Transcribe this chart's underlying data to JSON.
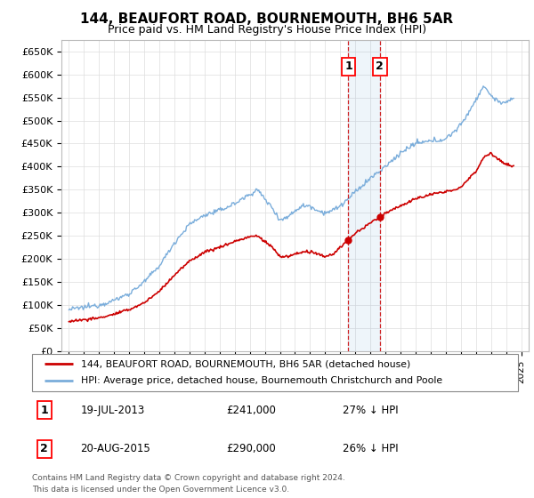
{
  "title": "144, BEAUFORT ROAD, BOURNEMOUTH, BH6 5AR",
  "subtitle": "Price paid vs. HM Land Registry's House Price Index (HPI)",
  "legend_line1": "144, BEAUFORT ROAD, BOURNEMOUTH, BH6 5AR (detached house)",
  "legend_line2": "HPI: Average price, detached house, Bournemouth Christchurch and Poole",
  "footer": "Contains HM Land Registry data © Crown copyright and database right 2024.\nThis data is licensed under the Open Government Licence v3.0.",
  "annotation1": {
    "label": "1",
    "date": "19-JUL-2013",
    "price": "£241,000",
    "note": "27% ↓ HPI"
  },
  "annotation2": {
    "label": "2",
    "date": "20-AUG-2015",
    "price": "£290,000",
    "note": "26% ↓ HPI"
  },
  "sale1_year": 2013.54,
  "sale2_year": 2015.63,
  "sale1_price": 241000,
  "sale2_price": 290000,
  "ylim": [
    0,
    675000
  ],
  "xlim_start": 1994.5,
  "xlim_end": 2025.5,
  "yticks": [
    0,
    50000,
    100000,
    150000,
    200000,
    250000,
    300000,
    350000,
    400000,
    450000,
    500000,
    550000,
    600000,
    650000
  ],
  "ytick_labels": [
    "£0",
    "£50K",
    "£100K",
    "£150K",
    "£200K",
    "£250K",
    "£300K",
    "£350K",
    "£400K",
    "£450K",
    "£500K",
    "£550K",
    "£600K",
    "£650K"
  ],
  "red_color": "#cc0000",
  "blue_color": "#7aaddb",
  "background_color": "#ffffff",
  "grid_color": "#dddddd",
  "title_fontsize": 11,
  "subtitle_fontsize": 9
}
